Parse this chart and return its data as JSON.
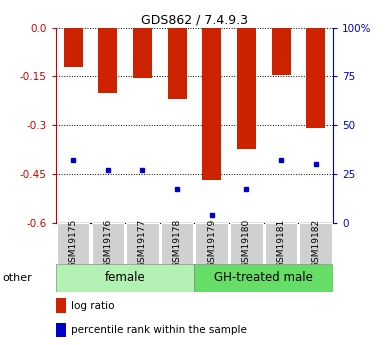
{
  "title": "GDS862 / 7.4.9.3",
  "samples": [
    "GSM19175",
    "GSM19176",
    "GSM19177",
    "GSM19178",
    "GSM19179",
    "GSM19180",
    "GSM19181",
    "GSM19182"
  ],
  "log_ratios": [
    -0.12,
    -0.2,
    -0.155,
    -0.22,
    -0.47,
    -0.375,
    -0.145,
    -0.31
  ],
  "percentile_ranks": [
    32,
    27,
    27,
    17,
    4,
    17,
    32,
    30
  ],
  "group_boundary": 4,
  "group_female_label": "female",
  "group_male_label": "GH-treated male",
  "group_color_light": "#b3f0b3",
  "group_color_dark": "#66dd66",
  "ylim_left": [
    -0.6,
    0.0
  ],
  "ylim_right": [
    0,
    100
  ],
  "yticks_left": [
    0.0,
    -0.15,
    -0.3,
    -0.45,
    -0.6
  ],
  "yticks_right": [
    0,
    25,
    50,
    75,
    100
  ],
  "bar_color": "#CC2200",
  "marker_color": "#0000CC",
  "bar_width": 0.55,
  "other_label": "other",
  "legend_log_ratio": "log ratio",
  "legend_percentile": "percentile rank within the sample",
  "left_axis_color": "#CC0000",
  "right_axis_color": "#0000CC",
  "title_fontsize": 9,
  "tick_fontsize": 7.5,
  "sample_fontsize": 6.5,
  "group_fontsize": 8.5
}
